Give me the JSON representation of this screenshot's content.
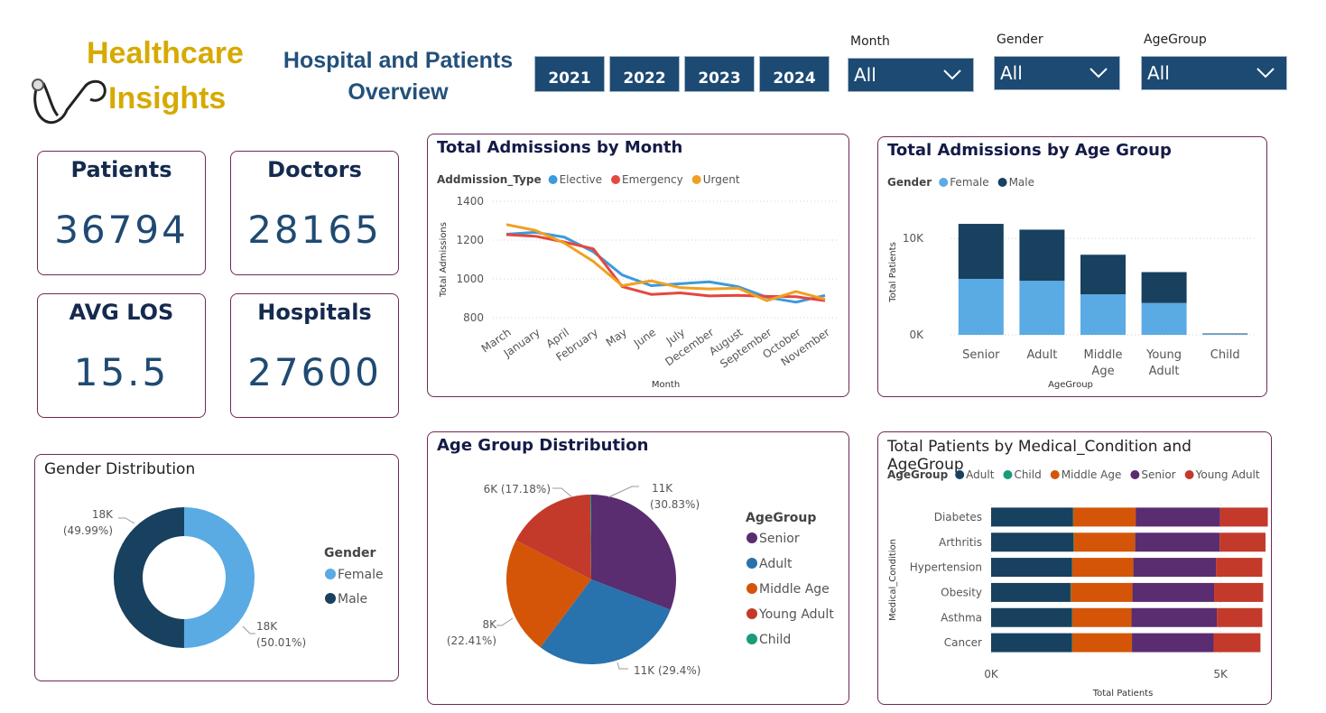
{
  "header": {
    "logo_line1": "Healthcare",
    "logo_line2": "Insights",
    "title_line1": "Hospital and Patients",
    "title_line2": "Overview",
    "years": [
      "2021",
      "2022",
      "2023",
      "2024"
    ],
    "filters": [
      {
        "label": "Month",
        "value": "All"
      },
      {
        "label": "Gender",
        "value": "All"
      },
      {
        "label": "AgeGroup",
        "value": "All"
      }
    ]
  },
  "kpis": [
    {
      "title": "Patients",
      "value": "36794"
    },
    {
      "title": "Doctors",
      "value": "28165"
    },
    {
      "title": "AVG LOS",
      "value": "15.5"
    },
    {
      "title": "Hospitals",
      "value": "27600"
    }
  ],
  "chart_data": [
    {
      "type": "line",
      "title": "Total Admissions by Month",
      "legend_title": "Addmission_Type",
      "xlabel": "Month",
      "ylabel": "Total Admissions",
      "ylim": [
        800,
        1400
      ],
      "yticks": [
        800,
        1000,
        1200,
        1400
      ],
      "categories": [
        "March",
        "January",
        "April",
        "February",
        "May",
        "June",
        "July",
        "December",
        "August",
        "September",
        "October",
        "November"
      ],
      "series": [
        {
          "name": "Elective",
          "color": "#3c9ade",
          "values": [
            1230,
            1240,
            1215,
            1140,
            1020,
            965,
            975,
            985,
            960,
            905,
            880,
            915
          ]
        },
        {
          "name": "Emergency",
          "color": "#e4483e",
          "values": [
            1228,
            1220,
            1190,
            1155,
            960,
            920,
            928,
            912,
            915,
            910,
            908,
            888
          ]
        },
        {
          "name": "Urgent",
          "color": "#f0a020",
          "values": [
            1280,
            1250,
            1185,
            1090,
            965,
            990,
            955,
            948,
            952,
            888,
            935,
            895
          ]
        }
      ],
      "grid": true,
      "legend": "top-left"
    },
    {
      "type": "bar",
      "stacked": true,
      "title": "Total Admissions by Age Group",
      "legend_title": "Gender",
      "xlabel": "AgeGroup",
      "ylabel": "Total Patients",
      "categories": [
        "Senior",
        "Adult",
        "Middle Age",
        "Young Adult",
        "Child"
      ],
      "ylim": [
        0,
        13000
      ],
      "yticks": [
        {
          "v": 0,
          "label": "0K"
        },
        {
          "v": 10000,
          "label": "10K"
        }
      ],
      "series": [
        {
          "name": "Female",
          "color": "#5aaae4",
          "values": [
            5800,
            5600,
            4200,
            3300,
            80
          ]
        },
        {
          "name": "Male",
          "color": "#18405f",
          "values": [
            5700,
            5300,
            4100,
            3200,
            60
          ]
        }
      ],
      "grid": true,
      "legend": "top-left"
    },
    {
      "type": "pie",
      "donut": true,
      "title": "Gender Distribution",
      "legend_title": "Gender",
      "slices": [
        {
          "name": "Female",
          "value": 50.01,
          "color": "#5aaae4",
          "label_line1": "18K",
          "label_line2": "(50.01%)"
        },
        {
          "name": "Male",
          "value": 49.99,
          "color": "#18405f",
          "label_line1": "18K",
          "label_line2": "(49.99%)"
        }
      ],
      "legend": "right"
    },
    {
      "type": "pie",
      "title": "Age Group Distribution",
      "legend_title": "AgeGroup",
      "slices": [
        {
          "name": "Senior",
          "value": 30.83,
          "color": "#5a2c70",
          "label": "11K",
          "label2": "(30.83%)"
        },
        {
          "name": "Adult",
          "value": 29.4,
          "color": "#2872ad",
          "label": "11K (29.4%)",
          "label2": ""
        },
        {
          "name": "Middle Age",
          "value": 22.41,
          "color": "#d45508",
          "label": "8K",
          "label2": "(22.41%)"
        },
        {
          "name": "Young Adult",
          "value": 17.18,
          "color": "#c33a2b",
          "label": "6K (17.18%)",
          "label2": ""
        },
        {
          "name": "Child",
          "value": 0.18,
          "color": "#1a9b7a",
          "label": "",
          "label2": ""
        }
      ],
      "legend": "right"
    },
    {
      "type": "bar",
      "orientation": "horizontal",
      "stacked": true,
      "title": "Total Patients by Medical_Condition and AgeGroup",
      "legend_title": "AgeGroup",
      "xlabel": "Total Patients",
      "ylabel": "Medical_Condition",
      "xlim": [
        0,
        6000
      ],
      "xticks": [
        {
          "v": 0,
          "label": "0K"
        },
        {
          "v": 5000,
          "label": "5K"
        }
      ],
      "categories": [
        "Diabetes",
        "Arthritis",
        "Hypertension",
        "Obesity",
        "Asthma",
        "Cancer"
      ],
      "series": [
        {
          "name": "Adult",
          "color": "#18405f",
          "values": [
            1780,
            1790,
            1760,
            1730,
            1760,
            1760
          ]
        },
        {
          "name": "Child",
          "color": "#1a9b7a",
          "values": [
            10,
            10,
            10,
            10,
            10,
            10
          ]
        },
        {
          "name": "Middle Age",
          "color": "#d45508",
          "values": [
            1360,
            1340,
            1330,
            1340,
            1290,
            1300
          ]
        },
        {
          "name": "Senior",
          "color": "#5a2c70",
          "values": [
            1840,
            1840,
            1800,
            1780,
            1860,
            1780
          ]
        },
        {
          "name": "Young Adult",
          "color": "#c33a2b",
          "values": [
            1040,
            1000,
            1010,
            1070,
            990,
            1020
          ]
        }
      ],
      "grid": true,
      "legend": "top-left"
    }
  ]
}
